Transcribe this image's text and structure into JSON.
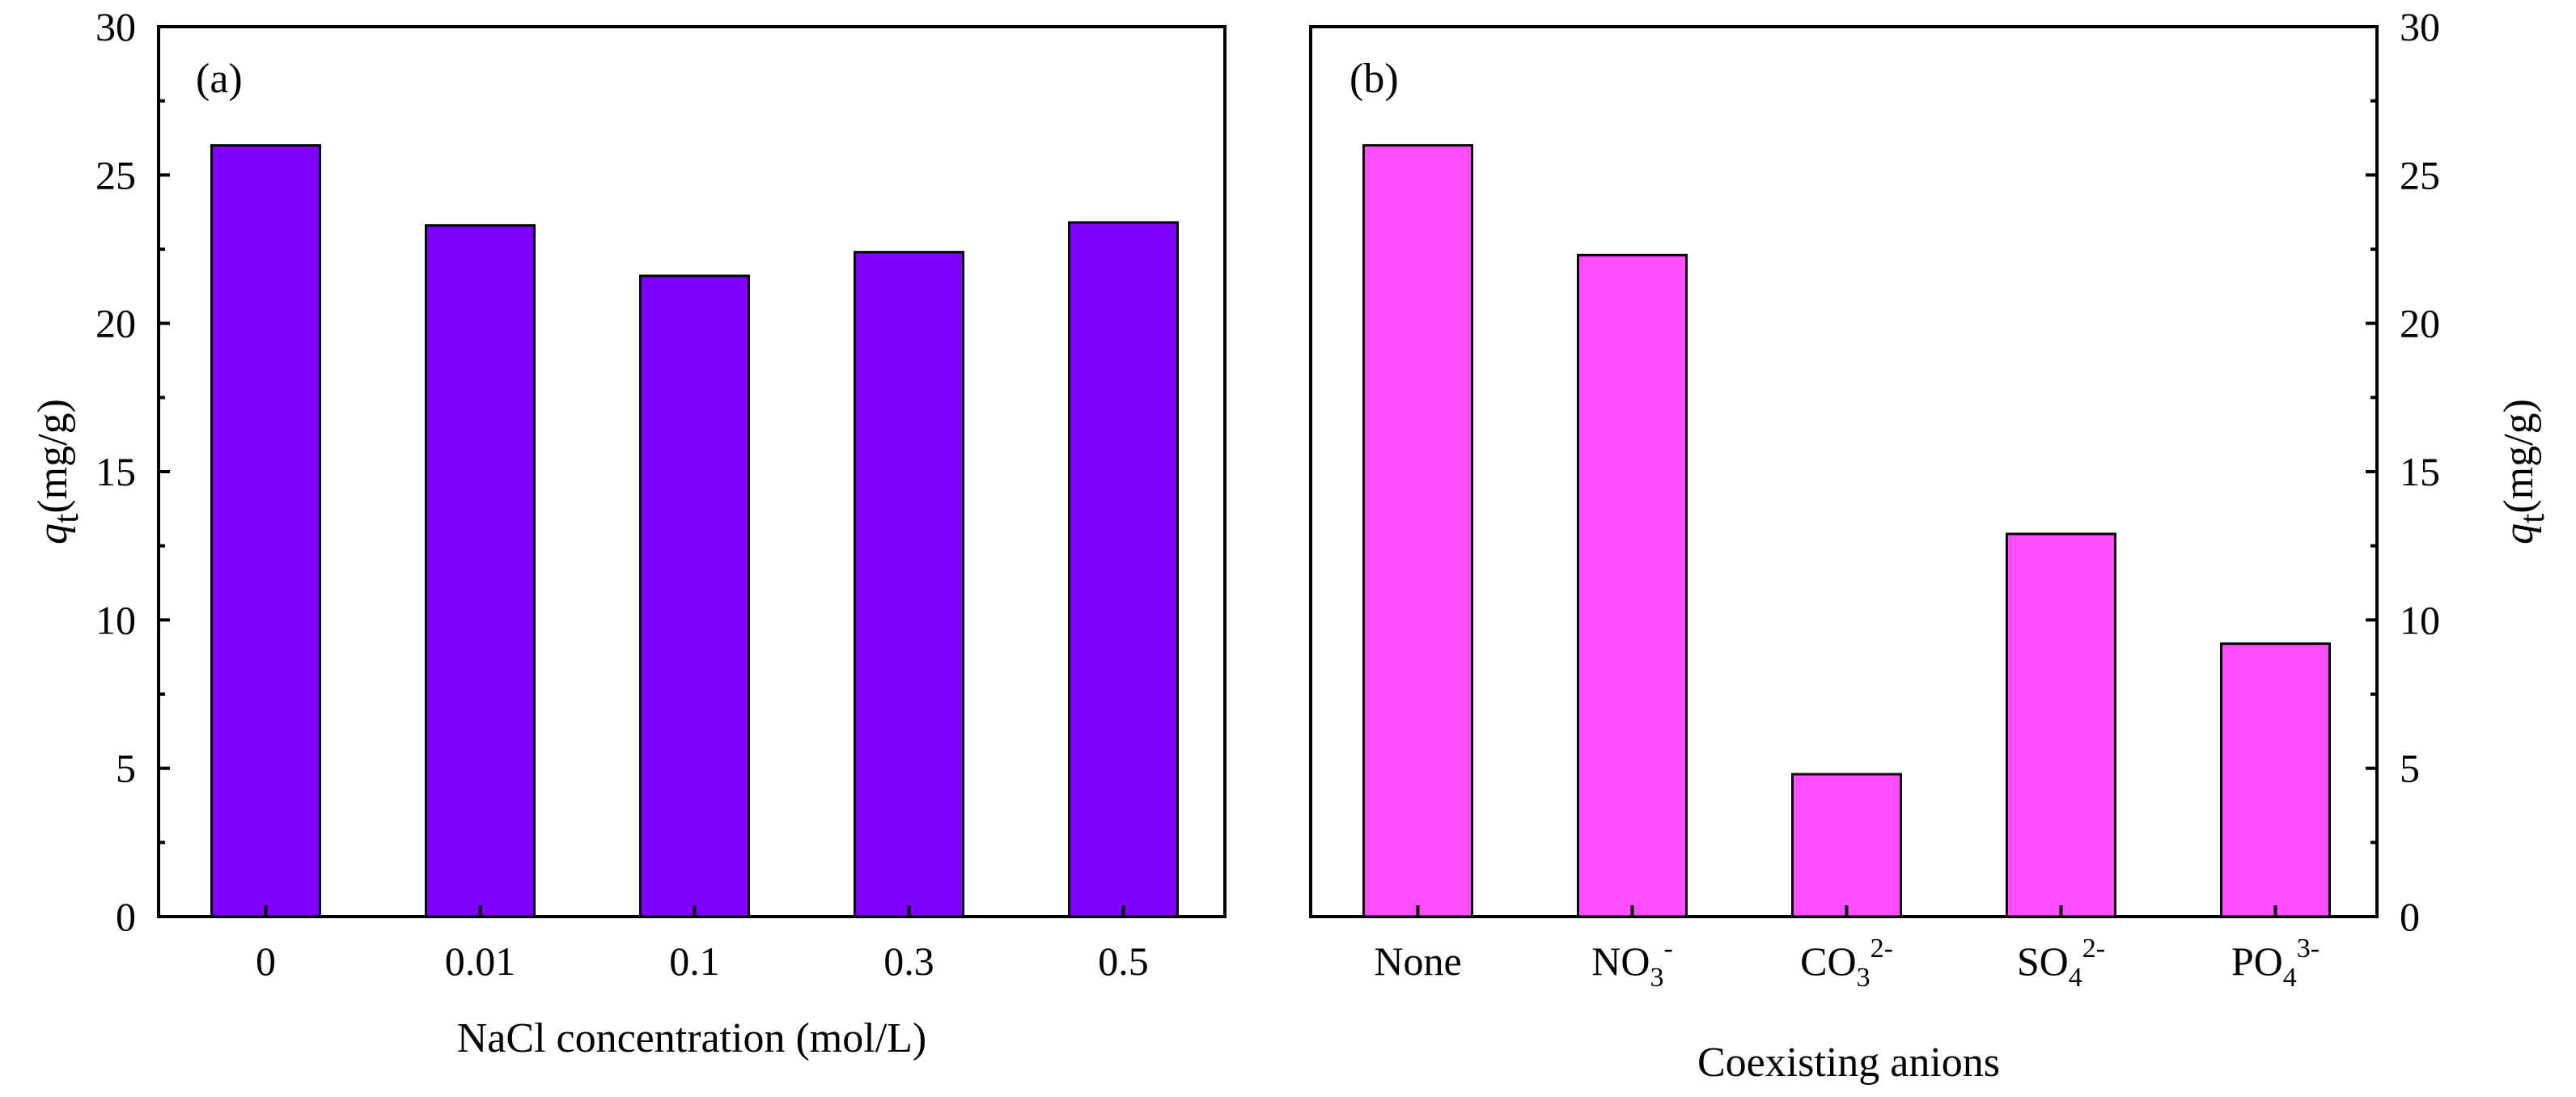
{
  "chart_data": [
    {
      "type": "bar",
      "panel_label": "(a)",
      "categories": [
        "0",
        "0.01",
        "0.1",
        "0.3",
        "0.5"
      ],
      "values": [
        26.0,
        23.3,
        21.6,
        22.4,
        23.4
      ],
      "xlabel": "NaCl concentration (mol/L)",
      "ylabel_symbol": "q",
      "ylabel_subscript": "t",
      "ylabel_unit": "(mg/g)",
      "ylim": [
        0,
        30
      ],
      "yticks": [
        "0",
        "5",
        "10",
        "15",
        "20",
        "25",
        "30"
      ],
      "y_axis_side": "left",
      "bar_color": "#7F00FF",
      "grid": false
    },
    {
      "type": "bar",
      "panel_label": "(b)",
      "categories": [
        {
          "base": "None",
          "sub": "",
          "sup": ""
        },
        {
          "base": "NO",
          "sub": "3",
          "sup": "-"
        },
        {
          "base": "CO",
          "sub": "3",
          "sup": "2-"
        },
        {
          "base": "SO",
          "sub": "4",
          "sup": "2-"
        },
        {
          "base": "PO",
          "sub": "4",
          "sup": "3-"
        }
      ],
      "values": [
        26.0,
        22.3,
        4.8,
        12.9,
        9.2
      ],
      "xlabel": "Coexisting anions",
      "ylabel_symbol": "q",
      "ylabel_subscript": "t",
      "ylabel_unit": "(mg/g)",
      "ylim": [
        0,
        30
      ],
      "yticks": [
        "0",
        "5",
        "10",
        "15",
        "20",
        "25",
        "30"
      ],
      "y_axis_side": "right",
      "bar_color": "#FF4DFF",
      "grid": false
    }
  ]
}
